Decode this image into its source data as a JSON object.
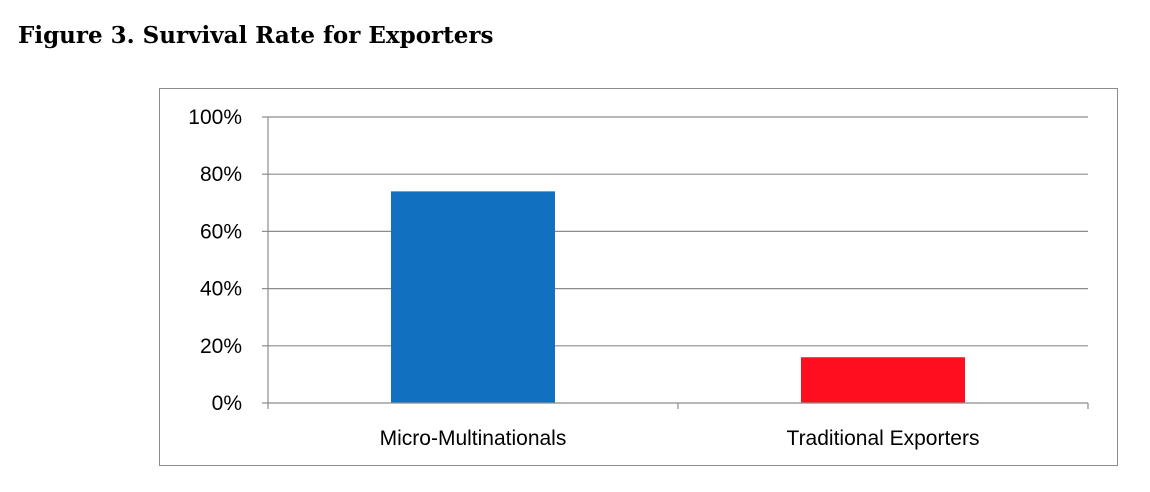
{
  "figure": {
    "title": "Figure 3. Survival Rate for Exporters"
  },
  "chart_data": {
    "type": "bar",
    "categories": [
      "Micro-Multinationals",
      "Traditional Exporters"
    ],
    "values": [
      74,
      16
    ],
    "value_format": "percent",
    "colors": [
      "#1170c0",
      "#ff0e1f"
    ],
    "ylim": [
      0,
      100
    ],
    "yticks": [
      0,
      20,
      40,
      60,
      80,
      100
    ],
    "ytick_labels": [
      "0%",
      "20%",
      "40%",
      "60%",
      "80%",
      "100%"
    ],
    "grid": true,
    "legend": "none"
  }
}
